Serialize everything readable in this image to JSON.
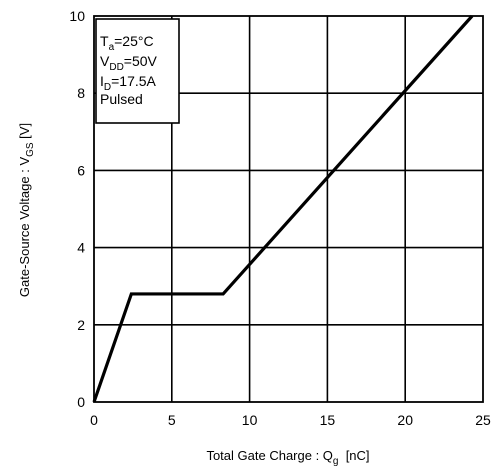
{
  "chart_data": {
    "type": "line",
    "xlabel": {
      "main": "Total Gate Charge : Q",
      "sub": "g",
      "unit": "  [nC]"
    },
    "ylabel": {
      "main": "Gate-Source Voltage : V",
      "sub": "GS",
      "unit": " [V]"
    },
    "xlim": [
      0,
      25
    ],
    "ylim": [
      0,
      10
    ],
    "xticks": [
      0,
      5,
      10,
      15,
      20,
      25
    ],
    "yticks": [
      0,
      2,
      4,
      6,
      8,
      10
    ],
    "grid": true,
    "legend_position": "top-left",
    "conditions": [
      {
        "main": "T",
        "sub": "a",
        "rest": "=25°C"
      },
      {
        "main": "V",
        "sub": "DD",
        "rest": "=50V"
      },
      {
        "main": "I",
        "sub": "D",
        "rest": "=17.5A"
      },
      {
        "main": "Pulsed",
        "sub": "",
        "rest": ""
      }
    ],
    "series": [
      {
        "color": "#000000",
        "x": [
          0,
          2.4,
          8.3,
          24.3
        ],
        "y": [
          0,
          2.8,
          2.8,
          10
        ]
      }
    ]
  }
}
